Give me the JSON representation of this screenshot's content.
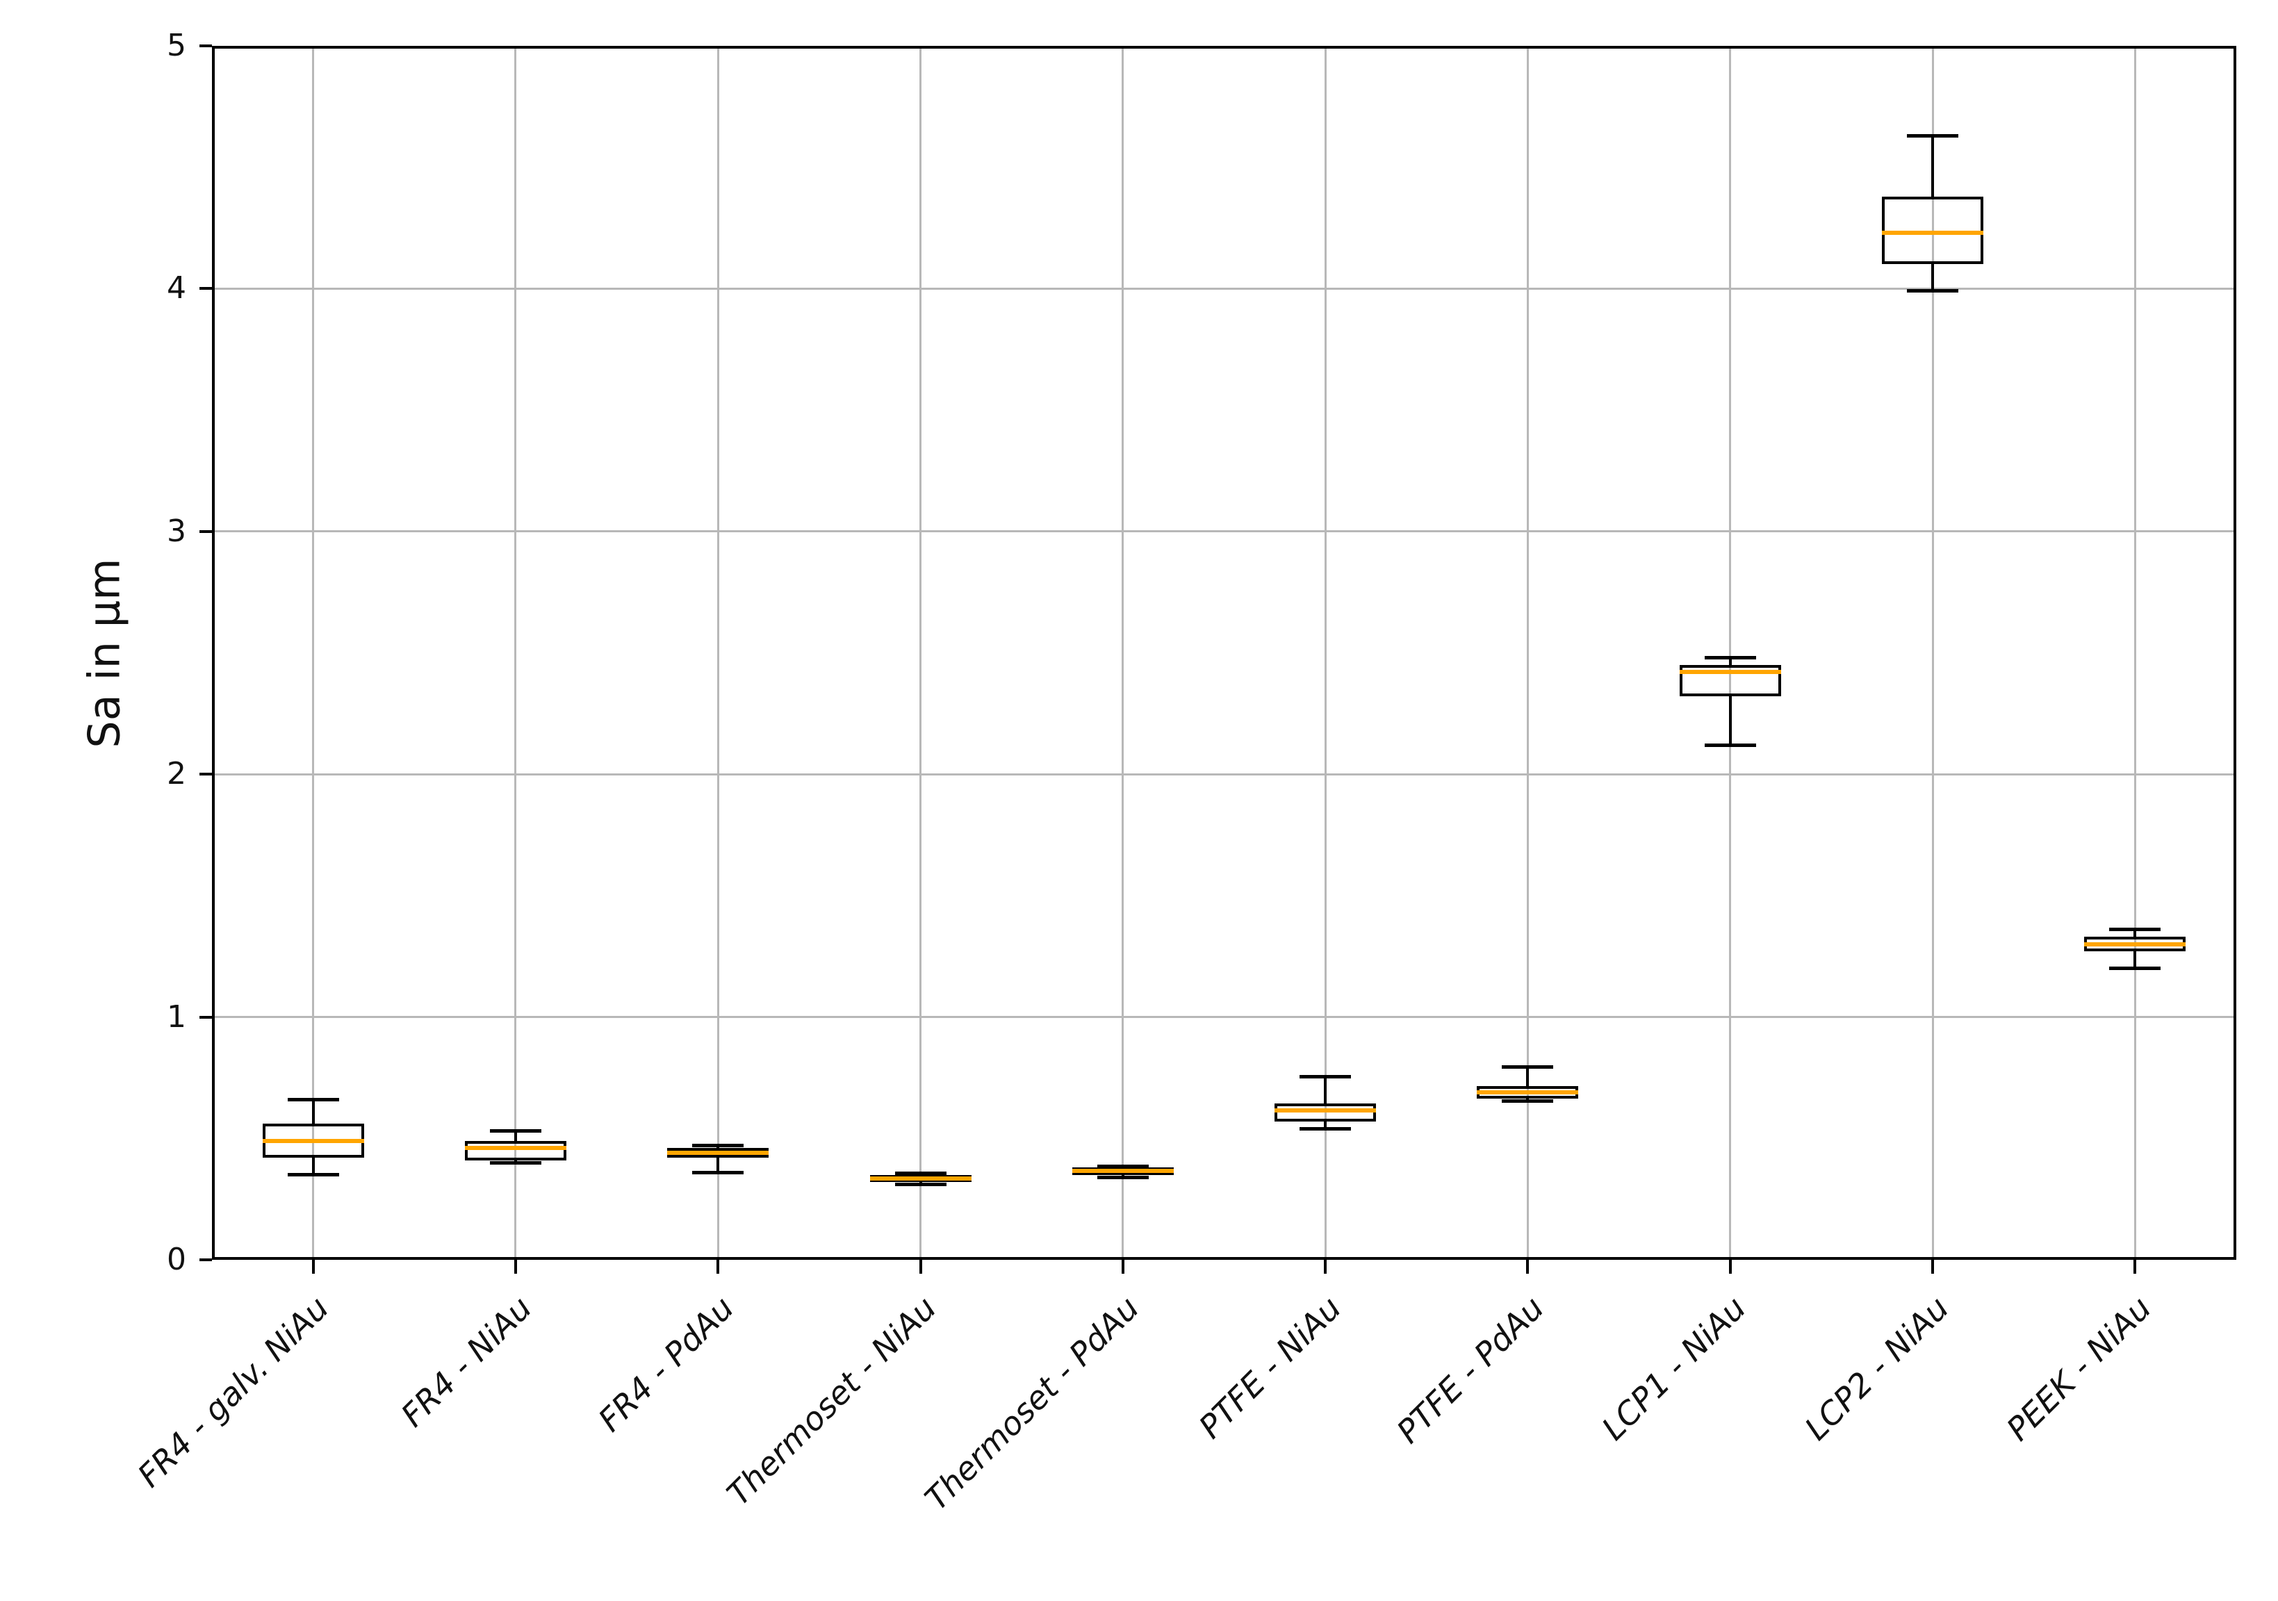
{
  "chart_data": {
    "type": "box",
    "title": "",
    "xlabel": "",
    "ylabel": "Sa in µm",
    "ylim": [
      0,
      5
    ],
    "yticks": [
      0,
      1,
      2,
      3,
      4,
      5
    ],
    "grid": true,
    "legend": "none",
    "categories": [
      "FR4 - galv. NiAu",
      "FR4 - NiAu",
      "FR4 - PdAu",
      "Thermoset - NiAu",
      "Thermoset - PdAu",
      "PTFE - NiAu",
      "PTFE - PdAu",
      "LCP1 - NiAu",
      "LCP2 - NiAu",
      "PEEK - NiAu"
    ],
    "series": [
      {
        "label": "FR4 - galv. NiAu",
        "whislo": 0.35,
        "q1": 0.42,
        "med": 0.49,
        "q3": 0.56,
        "whishi": 0.66
      },
      {
        "label": "FR4 - NiAu",
        "whislo": 0.4,
        "q1": 0.41,
        "med": 0.46,
        "q3": 0.49,
        "whishi": 0.53
      },
      {
        "label": "FR4 - PdAu",
        "whislo": 0.36,
        "q1": 0.42,
        "med": 0.44,
        "q3": 0.46,
        "whishi": 0.47
      },
      {
        "label": "Thermoset - NiAu",
        "whislo": 0.31,
        "q1": 0.32,
        "med": 0.335,
        "q3": 0.35,
        "whishi": 0.355
      },
      {
        "label": "Thermoset - PdAu",
        "whislo": 0.34,
        "q1": 0.35,
        "med": 0.365,
        "q3": 0.38,
        "whishi": 0.385
      },
      {
        "label": "PTFE - NiAu",
        "whislo": 0.54,
        "q1": 0.57,
        "med": 0.615,
        "q3": 0.645,
        "whishi": 0.755
      },
      {
        "label": "PTFE - PdAu",
        "whislo": 0.655,
        "q1": 0.665,
        "med": 0.69,
        "q3": 0.715,
        "whishi": 0.795
      },
      {
        "label": "LCP1 - NiAu",
        "whislo": 2.12,
        "q1": 2.32,
        "med": 2.42,
        "q3": 2.45,
        "whishi": 2.48
      },
      {
        "label": "LCP2 - NiAu",
        "whislo": 3.99,
        "q1": 4.1,
        "med": 4.23,
        "q3": 4.38,
        "whishi": 4.63
      },
      {
        "label": "PEEK - NiAu",
        "whislo": 1.2,
        "q1": 1.27,
        "med": 1.3,
        "q3": 1.33,
        "whishi": 1.36
      }
    ],
    "colors": {
      "box_line": "#000000",
      "median": "#ffa500",
      "grid": "#b8b8b8",
      "spine": "#000000",
      "tick_label": "#111111",
      "background": "#ffffff"
    }
  }
}
